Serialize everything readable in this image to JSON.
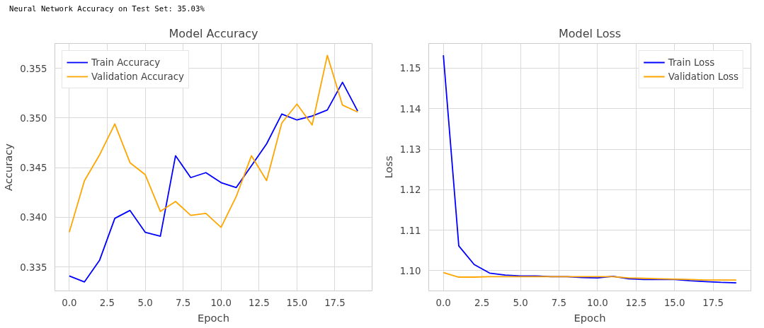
{
  "chart_data": [
    {
      "type": "line",
      "title": "Model Accuracy",
      "xlabel": "Epoch",
      "ylabel": "Accuracy",
      "annotations": [
        "Neural Network Accuracy on Test Set: 35.03%"
      ],
      "x": [
        0,
        1,
        2,
        3,
        4,
        5,
        6,
        7,
        8,
        9,
        10,
        11,
        12,
        13,
        14,
        15,
        16,
        17,
        18,
        19
      ],
      "series": [
        {
          "name": "Train Accuracy",
          "color": "#0000ff",
          "values": [
            0.3341,
            0.3335,
            0.3357,
            0.3399,
            0.3407,
            0.3385,
            0.3381,
            0.3462,
            0.344,
            0.3445,
            0.3435,
            0.343,
            0.3452,
            0.3474,
            0.3504,
            0.3498,
            0.3502,
            0.3508,
            0.3536,
            0.3507
          ]
        },
        {
          "name": "Validation Accuracy",
          "color": "#ffa500",
          "values": [
            0.3385,
            0.3437,
            0.3463,
            0.3494,
            0.3455,
            0.3443,
            0.3406,
            0.3416,
            0.3402,
            0.3404,
            0.339,
            0.3421,
            0.3462,
            0.3437,
            0.3495,
            0.3514,
            0.3493,
            0.3563,
            0.3513,
            0.3506
          ]
        }
      ],
      "xlim": [
        -0.95,
        19.95
      ],
      "xticks": [
        {
          "value": 0,
          "label": "0.0"
        },
        {
          "value": 2.5,
          "label": "2.5"
        },
        {
          "value": 5,
          "label": "5.0"
        },
        {
          "value": 7.5,
          "label": "7.5"
        },
        {
          "value": 10,
          "label": "10.0"
        },
        {
          "value": 12.5,
          "label": "12.5"
        },
        {
          "value": 15,
          "label": "15.0"
        },
        {
          "value": 17.5,
          "label": "17.5"
        }
      ],
      "ylim": [
        0.3326,
        0.3575
      ],
      "yticks": [
        0.335,
        {
          "value": 0.34,
          "label": "0.340"
        },
        0.345,
        {
          "value": 0.35,
          "label": "0.350"
        },
        0.355
      ],
      "grid": true,
      "legend": "top left",
      "line_style": "solid"
    },
    {
      "type": "line",
      "title": "Model Loss",
      "xlabel": "Epoch",
      "ylabel": "Loss",
      "x": [
        0,
        1,
        2,
        3,
        4,
        5,
        6,
        7,
        8,
        9,
        10,
        11,
        12,
        13,
        14,
        15,
        16,
        17,
        18,
        19
      ],
      "series": [
        {
          "name": "Train Loss",
          "color": "#0000ff",
          "values": [
            1.1532,
            1.1061,
            1.1015,
            1.0994,
            1.0989,
            1.0987,
            1.0987,
            1.0985,
            1.0985,
            1.0983,
            1.0982,
            1.0986,
            1.098,
            1.0978,
            1.0978,
            1.0978,
            1.0975,
            1.0973,
            1.0971,
            1.097
          ]
        },
        {
          "name": "Validation Loss",
          "color": "#ffa500",
          "values": [
            1.0995,
            1.0984,
            1.0984,
            1.0985,
            1.0985,
            1.0985,
            1.0985,
            1.0985,
            1.0985,
            1.0985,
            1.0985,
            1.0985,
            1.0982,
            1.0981,
            1.098,
            1.0979,
            1.0978,
            1.0977,
            1.0977,
            1.0977
          ]
        }
      ],
      "xlim": [
        -0.95,
        19.95
      ],
      "xticks": [
        {
          "value": 0,
          "label": "0.0"
        },
        {
          "value": 2.5,
          "label": "2.5"
        },
        {
          "value": 5,
          "label": "5.0"
        },
        {
          "value": 7.5,
          "label": "7.5"
        },
        {
          "value": 10,
          "label": "10.0"
        },
        {
          "value": 12.5,
          "label": "12.5"
        },
        {
          "value": 15,
          "label": "15.0"
        },
        {
          "value": 17.5,
          "label": "17.5"
        }
      ],
      "ylim": [
        1.095,
        1.1561
      ],
      "yticks": [
        {
          "value": 1.1,
          "label": "1.10"
        },
        1.11,
        1.12,
        1.13,
        1.14,
        1.15
      ],
      "grid": true,
      "legend": "top right",
      "line_style": "solid"
    }
  ]
}
